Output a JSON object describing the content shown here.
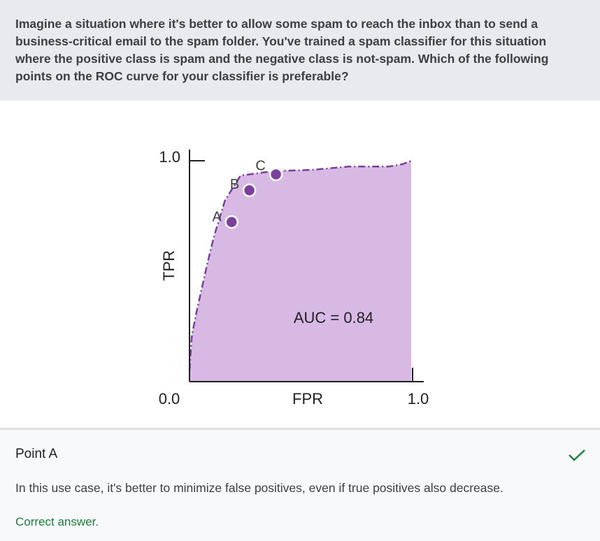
{
  "question": {
    "text": "Imagine a situation where it's better to allow some spam to reach the inbox than to send a business-critical email to the spam folder. You've trained a spam classifier for this situation where the positive class is spam and the negative class is not-spam. Which of the following points on the ROC curve for your classifier is preferable?"
  },
  "chart_data": {
    "type": "area",
    "xlabel": "FPR",
    "ylabel": "TPR",
    "xlim": [
      0,
      1
    ],
    "ylim": [
      0,
      1
    ],
    "x_tick_labels": [
      "0.0",
      "1.0"
    ],
    "y_tick_labels": [
      "0.0",
      "1.0"
    ],
    "annotation": "AUC = 0.84",
    "curve": {
      "x": [
        0.0,
        0.01,
        0.03,
        0.08,
        0.11,
        0.16,
        0.23,
        0.38,
        0.55,
        0.72,
        0.9,
        0.96,
        1.0
      ],
      "y": [
        0.05,
        0.2,
        0.3,
        0.52,
        0.64,
        0.8,
        0.91,
        0.93,
        0.935,
        0.95,
        0.95,
        0.96,
        0.975
      ]
    },
    "points": [
      {
        "label": "A",
        "x": 0.19,
        "y": 0.705
      },
      {
        "label": "B",
        "x": 0.27,
        "y": 0.845
      },
      {
        "label": "C",
        "x": 0.39,
        "y": 0.915
      }
    ],
    "colors": {
      "fill": "#d7b9e4",
      "line": "#7b3f9e",
      "point": "#7b3f9e"
    },
    "grid": false
  },
  "answer": {
    "option": "Point A",
    "explanation": "In this use case, it's better to minimize false positives, even if true positives also decrease.",
    "feedback": "Correct answer.",
    "check_icon": "checkmark-icon",
    "check_color": "#188038"
  }
}
